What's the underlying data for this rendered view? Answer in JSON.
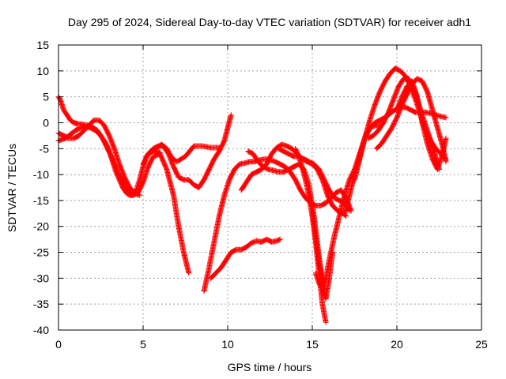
{
  "chart_data": {
    "type": "scatter",
    "title": "Day 295 of 2024, Sidereal Day-to-day VTEC variation (SDTVAR) for receiver adh1",
    "xlabel": "GPS time / hours",
    "ylabel": "SDTVAR / TECUs",
    "xlim": [
      0,
      25
    ],
    "ylim": [
      -40,
      15
    ],
    "x_ticks": [
      0,
      5,
      10,
      15,
      20,
      25
    ],
    "y_ticks": [
      15,
      10,
      5,
      0,
      -5,
      -10,
      -15,
      -20,
      -25,
      -30,
      -35,
      -40
    ],
    "grid": true,
    "marker": "+",
    "color": "#ff0000",
    "series": [
      {
        "x": [
          0.0,
          0.2,
          0.4,
          0.6,
          0.8,
          1.0,
          1.3,
          1.6,
          1.9,
          2.2,
          2.5,
          2.8,
          3.0,
          3.2,
          3.4,
          3.6,
          3.8,
          4.0,
          4.2,
          4.4,
          4.6,
          4.8,
          5.0,
          5.2,
          5.4,
          5.6,
          5.8,
          6.0
        ],
        "y": [
          -3.5,
          -3.2,
          -3.0,
          -2.5,
          -2.0,
          -1.5,
          -1.0,
          -0.8,
          -1.0,
          -1.5,
          -2.5,
          -4.0,
          -5.5,
          -7.5,
          -9.5,
          -11.0,
          -12.5,
          -13.5,
          -14.0,
          -14.0,
          -13.0,
          -11.0,
          -8.5,
          -6.5,
          -5.8,
          -5.5,
          -5.5,
          -5.8
        ]
      },
      {
        "x": [
          0.0,
          0.1,
          0.2,
          0.3,
          0.5,
          0.7,
          0.9,
          1.1,
          1.4,
          1.7,
          2.0,
          2.3,
          2.6,
          2.9,
          3.2,
          3.5,
          3.8,
          4.1,
          4.4,
          4.7,
          5.0,
          5.3,
          5.6,
          6.0,
          6.4,
          6.8,
          7.1,
          7.4,
          7.7
        ],
        "y": [
          5.0,
          4.5,
          3.5,
          2.5,
          1.5,
          0.5,
          0.0,
          -0.2,
          -0.3,
          -0.5,
          -0.8,
          -1.5,
          -3.0,
          -5.0,
          -7.0,
          -9.5,
          -11.5,
          -13.0,
          -14.0,
          -13.5,
          -11.5,
          -8.5,
          -6.5,
          -6.0,
          -9.0,
          -14.0,
          -20.0,
          -25.0,
          -29.0
        ]
      },
      {
        "x": [
          0.0,
          0.3,
          0.6,
          0.9,
          1.2,
          1.5,
          1.8,
          2.1,
          2.4,
          2.7,
          3.0,
          3.3,
          3.6,
          3.9,
          4.2,
          4.5,
          4.8
        ],
        "y": [
          -2.0,
          -2.5,
          -3.0,
          -3.0,
          -2.5,
          -1.5,
          -0.5,
          0.5,
          0.5,
          -0.5,
          -2.5,
          -5.0,
          -8.0,
          -10.5,
          -12.5,
          -13.5,
          -14.0
        ]
      },
      {
        "x": [
          5.0,
          5.3,
          5.6,
          5.9,
          6.2,
          6.5,
          6.8,
          7.1,
          7.4,
          7.7,
          8.0,
          8.3,
          8.6,
          8.9,
          9.2,
          9.5,
          9.8,
          10.0,
          10.2
        ],
        "y": [
          -8.0,
          -6.0,
          -5.0,
          -4.5,
          -4.5,
          -6.0,
          -8.5,
          -10.5,
          -11.0,
          -11.0,
          -12.0,
          -12.5,
          -11.0,
          -9.0,
          -7.0,
          -5.5,
          -3.5,
          -1.0,
          1.5
        ]
      },
      {
        "x": [
          5.2,
          5.5,
          5.8,
          6.1,
          6.4,
          6.7,
          7.0,
          7.5,
          8.0,
          8.5,
          9.0,
          9.5
        ],
        "y": [
          -6.5,
          -5.5,
          -4.8,
          -4.2,
          -5.0,
          -6.8,
          -7.5,
          -6.5,
          -4.5,
          -4.5,
          -4.8,
          -4.8
        ]
      },
      {
        "x": [
          8.6,
          8.9,
          9.2,
          9.5,
          9.8,
          10.1,
          10.4,
          10.7,
          11.0,
          11.3,
          11.6,
          11.9,
          12.2,
          12.5,
          12.8,
          13.1,
          13.4,
          13.7,
          14.0,
          14.3,
          14.6,
          14.9,
          15.2,
          15.5,
          15.8,
          16.1,
          16.4,
          16.7,
          17.0,
          17.3
        ],
        "y": [
          -32.5,
          -28.0,
          -23.0,
          -18.0,
          -14.0,
          -11.0,
          -9.0,
          -8.0,
          -7.8,
          -7.5,
          -7.5,
          -7.2,
          -7.0,
          -7.2,
          -7.5,
          -8.0,
          -8.5,
          -9.5,
          -11.0,
          -13.0,
          -14.5,
          -15.5,
          -16.0,
          -16.0,
          -15.5,
          -14.5,
          -13.5,
          -13.0,
          -14.5,
          -17.0
        ]
      },
      {
        "x": [
          9.0,
          9.3,
          9.6,
          9.9,
          10.2,
          10.5,
          10.8,
          11.1,
          11.4,
          11.7,
          12.0,
          12.3,
          12.6,
          12.9,
          13.1
        ],
        "y": [
          -30.0,
          -29.0,
          -28.0,
          -26.5,
          -25.0,
          -24.5,
          -24.5,
          -24.0,
          -23.2,
          -22.8,
          -23.0,
          -22.5,
          -23.0,
          -22.8,
          -22.5
        ]
      },
      {
        "x": [
          10.8,
          11.1,
          11.4,
          11.7,
          12.0,
          12.3,
          12.6,
          12.9,
          13.2,
          13.5,
          13.8,
          14.1,
          14.4,
          14.7,
          15.0,
          15.3,
          15.6,
          15.9,
          16.2,
          16.5,
          16.8,
          17.0
        ],
        "y": [
          -13.0,
          -11.5,
          -10.0,
          -9.5,
          -9.0,
          -8.0,
          -6.0,
          -4.8,
          -4.2,
          -4.5,
          -5.0,
          -6.0,
          -7.0,
          -7.5,
          -8.0,
          -9.0,
          -11.0,
          -14.0,
          -16.0,
          -17.0,
          -17.5,
          -18.0
        ]
      },
      {
        "x": [
          11.2,
          11.5,
          11.8,
          12.1,
          12.4,
          12.7,
          13.0,
          13.3,
          13.6,
          13.9,
          14.2,
          14.5,
          14.8,
          15.1,
          15.4,
          15.7
        ],
        "y": [
          -5.5,
          -6.0,
          -7.5,
          -8.5,
          -9.0,
          -9.2,
          -9.5,
          -9.5,
          -9.0,
          -8.5,
          -8.0,
          -9.0,
          -12.0,
          -18.0,
          -26.0,
          -33.0
        ]
      },
      {
        "x": [
          13.0,
          13.3,
          13.6,
          13.9,
          14.2,
          14.5,
          14.8,
          15.1,
          15.4,
          15.7,
          16.0,
          16.3,
          16.6,
          16.9,
          17.2
        ],
        "y": [
          -5.0,
          -5.5,
          -6.0,
          -6.5,
          -6.5,
          -7.0,
          -7.5,
          -8.0,
          -9.0,
          -11.0,
          -13.0,
          -14.5,
          -15.0,
          -15.5,
          -17.0
        ]
      },
      {
        "x": [
          14.0,
          14.2,
          14.4,
          14.6,
          14.8,
          15.0,
          15.2,
          15.4,
          15.6,
          15.8
        ],
        "y": [
          -5.0,
          -6.5,
          -8.5,
          -11.0,
          -14.0,
          -18.0,
          -23.0,
          -29.0,
          -35.0,
          -38.5
        ]
      },
      {
        "x": [
          15.0,
          15.2,
          15.4,
          15.6,
          15.8,
          16.0,
          16.2
        ],
        "y": [
          -17.0,
          -22.0,
          -27.0,
          -31.0,
          -34.0,
          -30.0,
          -25.0
        ]
      },
      {
        "x": [
          15.2,
          15.4,
          15.6,
          15.8,
          16.0,
          16.3,
          16.6,
          16.9,
          17.2,
          17.5,
          17.8,
          18.1,
          18.4,
          18.7,
          19.0
        ],
        "y": [
          -29.0,
          -31.0,
          -32.0,
          -30.0,
          -26.5,
          -22.0,
          -18.0,
          -14.0,
          -11.0,
          -9.0,
          -6.0,
          -3.0,
          -1.0,
          -0.5,
          -0.5
        ]
      },
      {
        "x": [
          16.9,
          17.2,
          17.5,
          17.8,
          18.1,
          18.4,
          18.7,
          19.0,
          19.3,
          19.6,
          19.9,
          20.2,
          20.5,
          20.8,
          21.1,
          21.4,
          21.7,
          22.0,
          22.3,
          22.6,
          22.9
        ],
        "y": [
          -17.5,
          -14.0,
          -10.0,
          -6.5,
          -3.0,
          -1.0,
          0.0,
          0.5,
          1.0,
          1.8,
          2.5,
          3.0,
          3.0,
          2.5,
          2.0,
          2.0,
          2.0,
          1.8,
          1.5,
          1.2,
          1.0
        ]
      },
      {
        "x": [
          17.5,
          17.8,
          18.1,
          18.4,
          18.7,
          19.0,
          19.3,
          19.6,
          19.9,
          20.2,
          20.5,
          20.8,
          21.1,
          21.4,
          21.7,
          22.0,
          22.3,
          22.6,
          22.9
        ],
        "y": [
          -11.0,
          -7.0,
          -3.0,
          0.5,
          3.5,
          6.0,
          8.0,
          9.5,
          10.5,
          10.0,
          9.0,
          7.0,
          4.5,
          1.5,
          -1.5,
          -3.5,
          -5.0,
          -6.0,
          -7.0
        ]
      },
      {
        "x": [
          18.3,
          18.6,
          18.9,
          19.2,
          19.5,
          19.8,
          20.1,
          20.4,
          20.7,
          21.0,
          21.3,
          21.6,
          21.9,
          22.2,
          22.5
        ],
        "y": [
          -3.0,
          -2.5,
          -1.5,
          0.0,
          2.0,
          4.5,
          7.0,
          8.5,
          8.5,
          6.5,
          3.5,
          0.5,
          -2.5,
          -5.5,
          -9.0
        ]
      },
      {
        "x": [
          18.8,
          19.1,
          19.4,
          19.7,
          20.0,
          20.3,
          20.6,
          20.9,
          21.2,
          21.5,
          21.8,
          22.1,
          22.4,
          22.7,
          22.9
        ],
        "y": [
          -5.0,
          -4.0,
          -2.5,
          -1.0,
          1.0,
          3.5,
          5.5,
          7.5,
          8.5,
          8.0,
          6.0,
          2.5,
          -1.0,
          -4.5,
          -7.5
        ]
      },
      {
        "x": [
          20.0,
          20.3,
          20.6,
          20.9,
          21.2,
          21.5,
          21.8,
          22.1,
          22.4,
          22.7,
          22.9
        ],
        "y": [
          2.5,
          5.0,
          7.0,
          8.0,
          5.0,
          0.0,
          -4.0,
          -7.0,
          -9.0,
          -6.0,
          -3.0
        ]
      }
    ]
  }
}
